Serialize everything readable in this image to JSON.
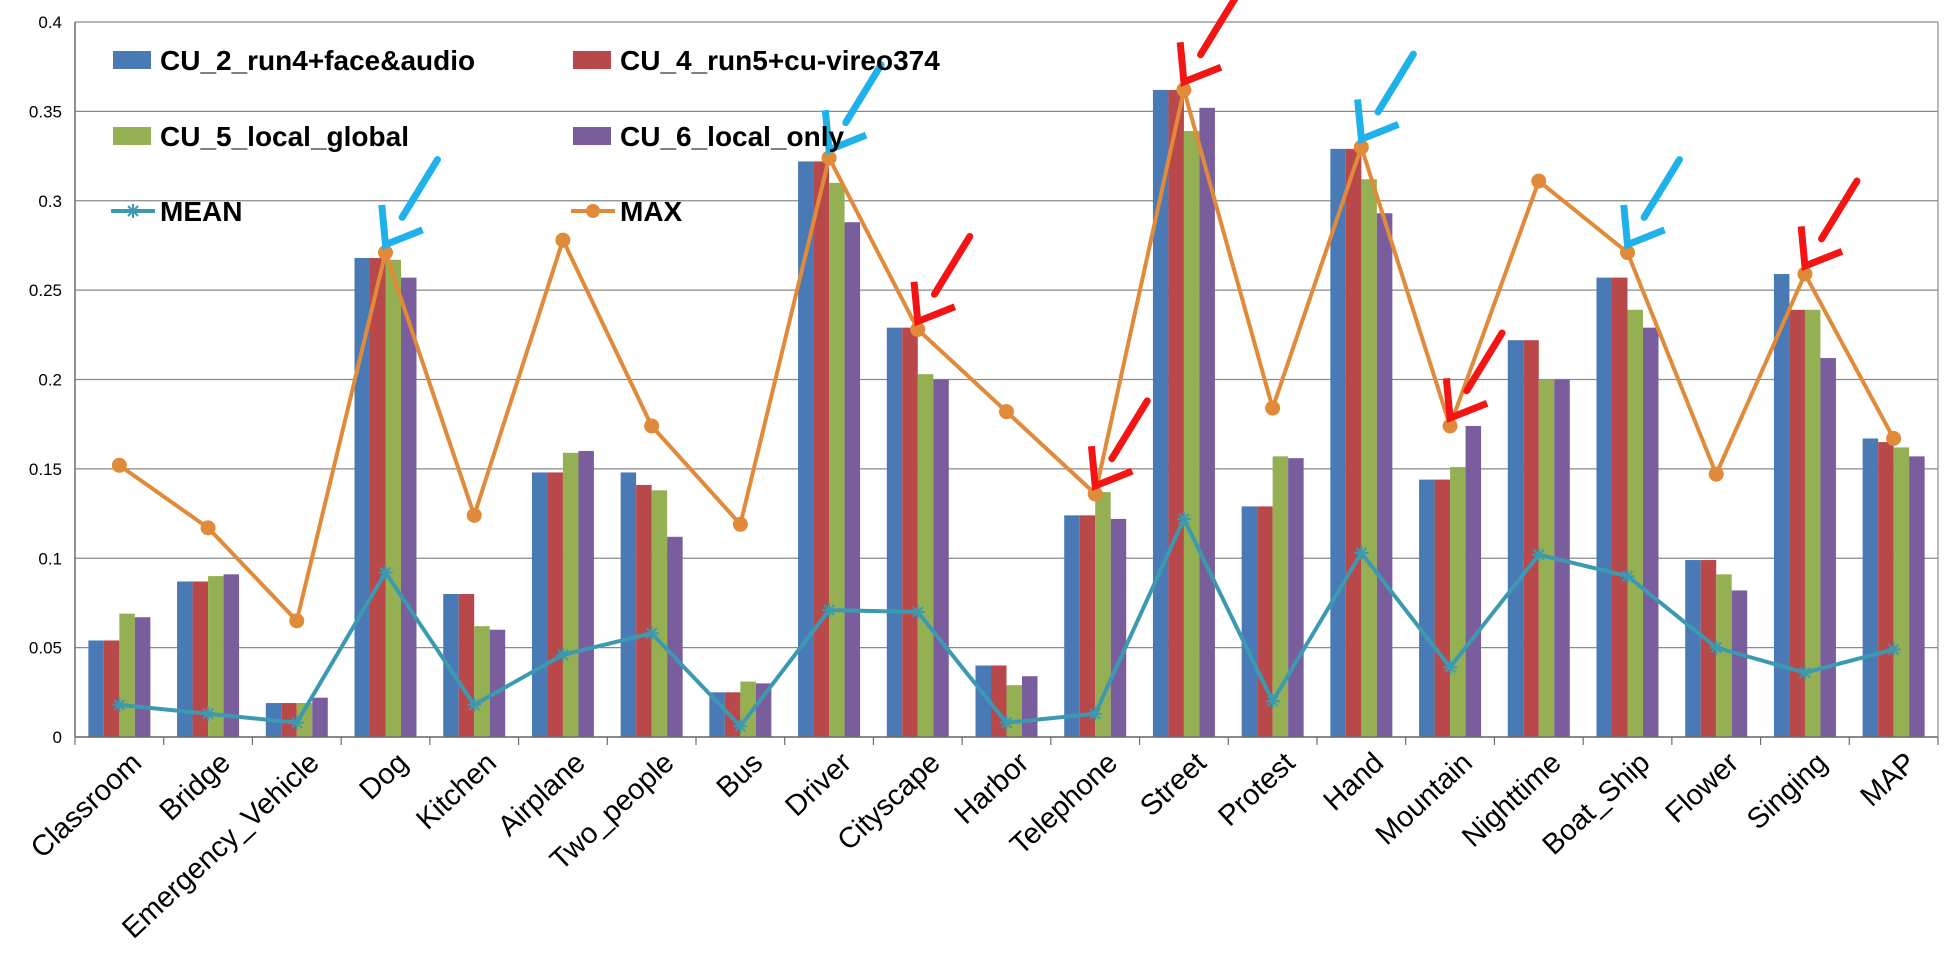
{
  "chart_data": {
    "type": "bar",
    "categories": [
      "Classroom",
      "Bridge",
      "Emergency_Vehicle",
      "Dog",
      "Kitchen",
      "Airplane",
      "Two_people",
      "Bus",
      "Driver",
      "Cityscape",
      "Harbor",
      "Telephone",
      "Street",
      "Protest",
      "Hand",
      "Mountain",
      "Nighttime",
      "Boat_Ship",
      "Flower",
      "Singing",
      "MAP"
    ],
    "ylim": [
      0,
      0.4
    ],
    "yticks": [
      "0",
      "0.05",
      "0.1",
      "0.15",
      "0.2",
      "0.25",
      "0.3",
      "0.35",
      "0.4"
    ],
    "grid": true,
    "legend_position": "top-left",
    "series": [
      {
        "name": "CU_2_run4+face&audio",
        "kind": "bar",
        "color": "#4a7ab5",
        "values": [
          0.054,
          0.087,
          0.019,
          0.268,
          0.08,
          0.148,
          0.148,
          0.025,
          0.322,
          0.229,
          0.04,
          0.124,
          0.362,
          0.129,
          0.329,
          0.144,
          0.222,
          0.257,
          0.099,
          0.259,
          0.167
        ]
      },
      {
        "name": "CU_4_run5+cu-vireo374",
        "kind": "bar",
        "color": "#b9484a",
        "values": [
          0.054,
          0.087,
          0.019,
          0.268,
          0.08,
          0.148,
          0.141,
          0.025,
          0.322,
          0.229,
          0.04,
          0.124,
          0.362,
          0.129,
          0.329,
          0.144,
          0.222,
          0.257,
          0.099,
          0.239,
          0.165
        ]
      },
      {
        "name": "CU_5_local_global",
        "kind": "bar",
        "color": "#94b052",
        "values": [
          0.069,
          0.09,
          0.019,
          0.267,
          0.062,
          0.159,
          0.138,
          0.031,
          0.31,
          0.203,
          0.029,
          0.137,
          0.339,
          0.157,
          0.312,
          0.151,
          0.2,
          0.239,
          0.091,
          0.239,
          0.162
        ]
      },
      {
        "name": "CU_6_local_only",
        "kind": "bar",
        "color": "#7a5d9c",
        "values": [
          0.067,
          0.091,
          0.022,
          0.257,
          0.06,
          0.16,
          0.112,
          0.03,
          0.288,
          0.2,
          0.034,
          0.122,
          0.352,
          0.156,
          0.293,
          0.174,
          0.2,
          0.229,
          0.082,
          0.212,
          0.157
        ]
      },
      {
        "name": "MEAN",
        "kind": "line",
        "color": "#3b9ab2",
        "marker": "star",
        "values": [
          0.018,
          0.013,
          0.008,
          0.092,
          0.018,
          0.046,
          0.058,
          0.006,
          0.071,
          0.07,
          0.008,
          0.013,
          0.122,
          0.02,
          0.103,
          0.039,
          0.102,
          0.09,
          0.05,
          0.036,
          0.049
        ]
      },
      {
        "name": "MAX",
        "kind": "line",
        "color": "#e08a3a",
        "marker": "circle",
        "values": [
          0.152,
          0.117,
          0.065,
          0.271,
          0.124,
          0.278,
          0.174,
          0.119,
          0.324,
          0.228,
          0.182,
          0.136,
          0.362,
          0.184,
          0.33,
          0.174,
          0.311,
          0.271,
          0.147,
          0.259,
          0.167
        ]
      }
    ],
    "annotations": {
      "blue_arrows": [
        3,
        8,
        14,
        17
      ],
      "red_arrows": [
        9,
        11,
        12,
        15,
        19
      ],
      "blue_color": "#1fb1ea",
      "red_color": "#f51414"
    }
  }
}
